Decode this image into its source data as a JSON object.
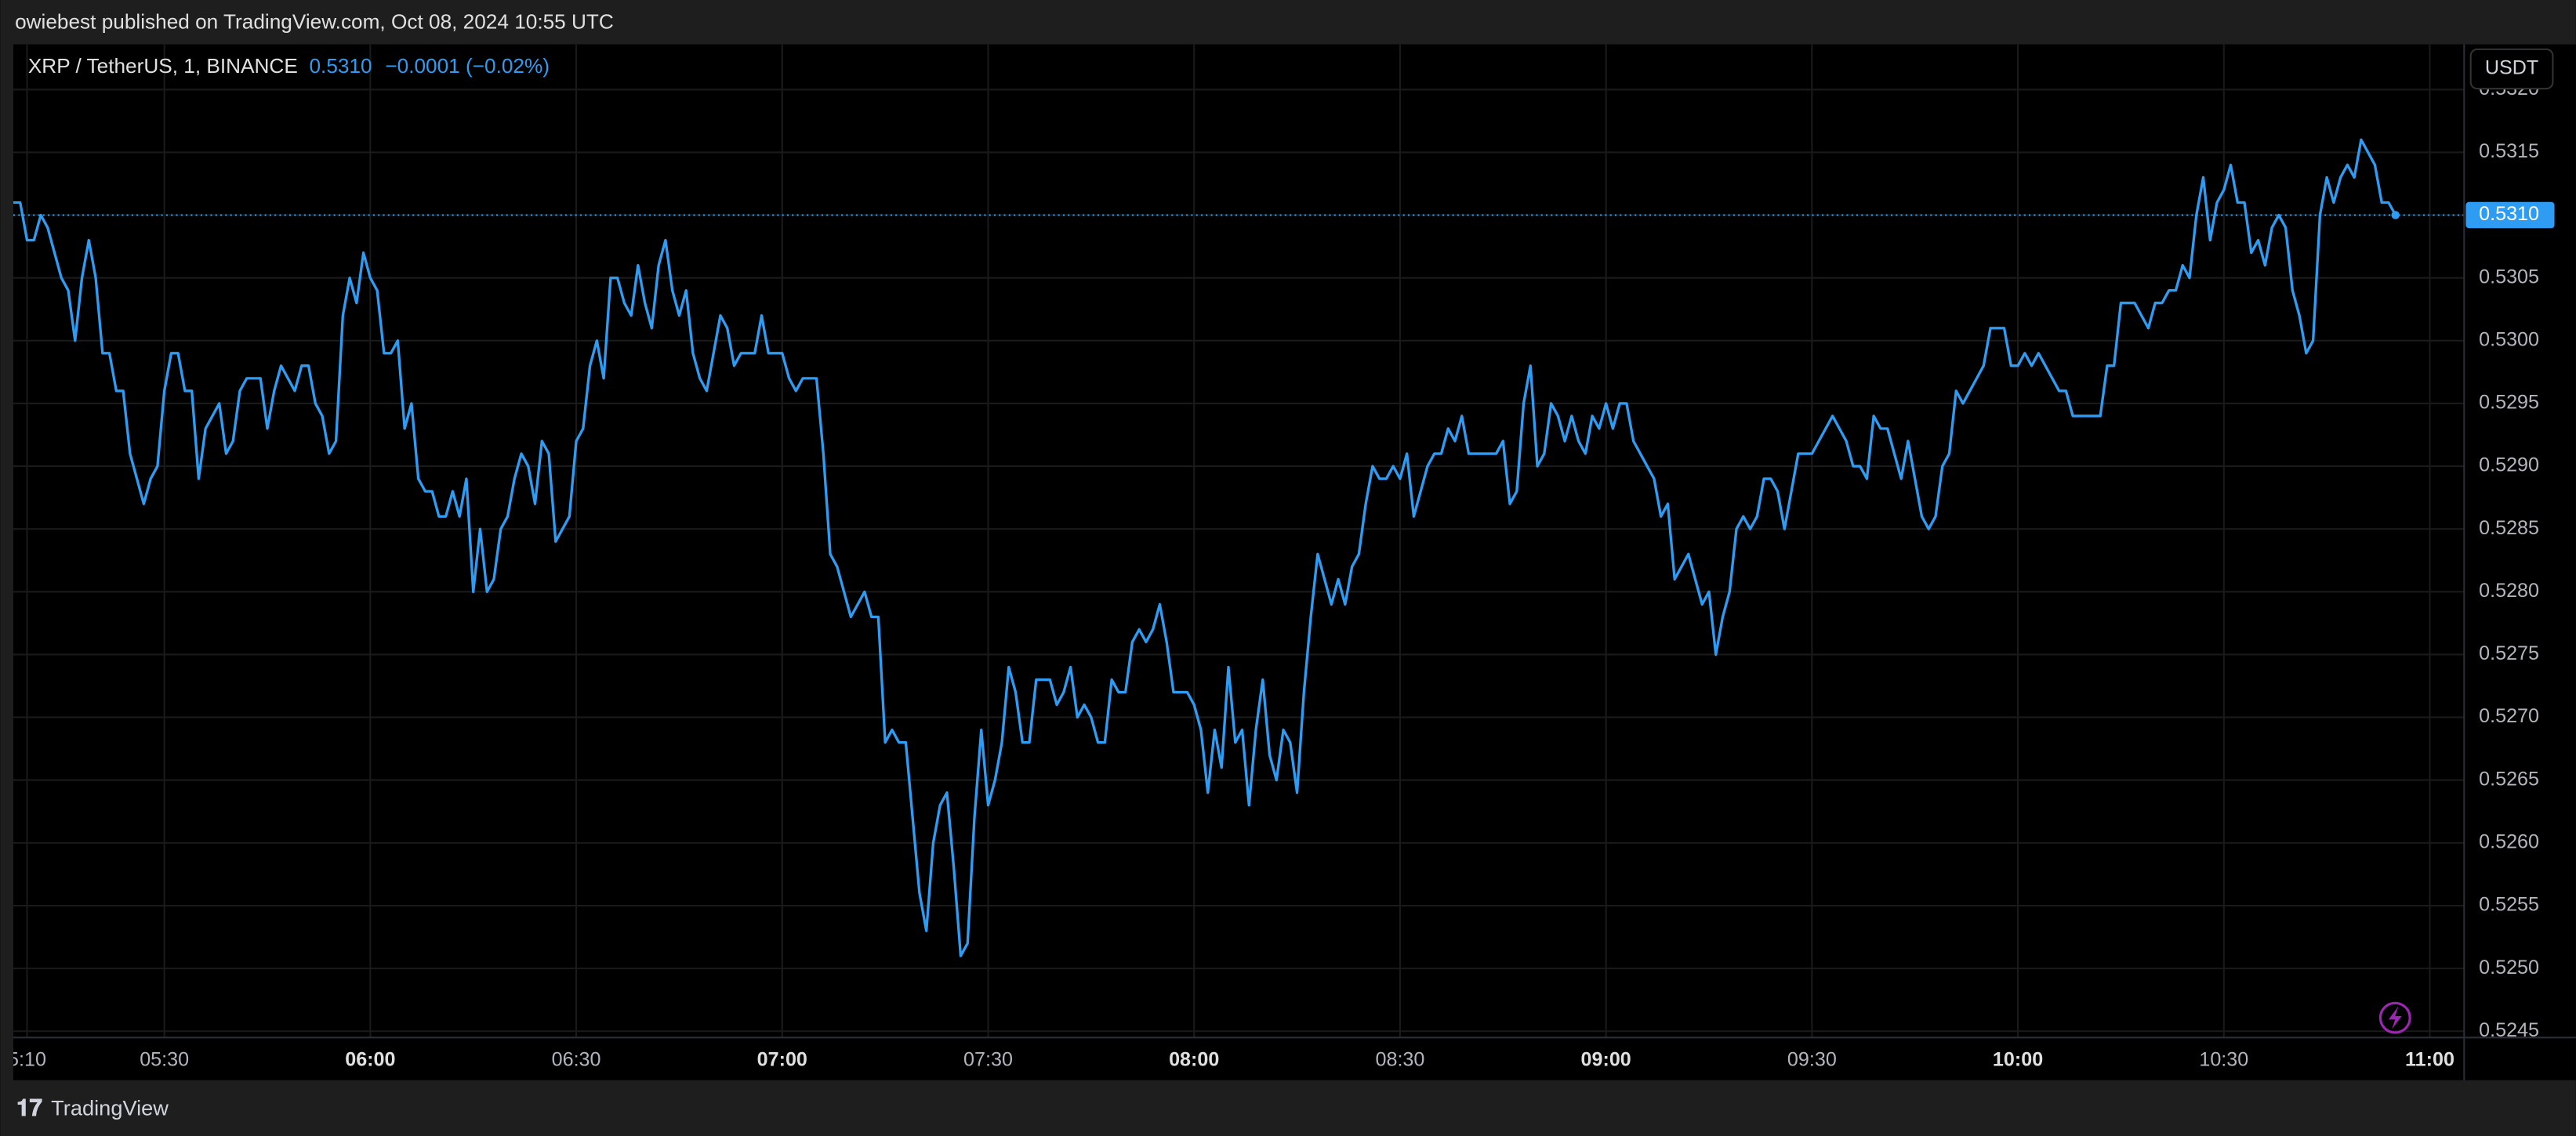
{
  "header": {
    "title": "owiebest published on TradingView.com, Oct 08, 2024 10:55 UTC"
  },
  "legend": {
    "last": "0.5310",
    "change": "−0.0001 (−0.02%)"
  },
  "currency_button": "USDT",
  "footer": {
    "brand": "TradingView"
  },
  "chart_data": {
    "type": "line",
    "series": [
      {
        "name": "XRP / TetherUS, 1, BINANCE",
        "color": "#2e9cf2",
        "values": [
          0.5311,
          0.5311,
          0.5308,
          0.5308,
          0.531,
          0.5309,
          0.5307,
          0.5305,
          0.5304,
          0.53,
          0.5305,
          0.5308,
          0.5305,
          0.5299,
          0.5299,
          0.5296,
          0.5296,
          0.5291,
          0.5289,
          0.5287,
          0.5289,
          0.529,
          0.5296,
          0.5299,
          0.5299,
          0.5296,
          0.5296,
          0.5289,
          0.5293,
          0.5294,
          0.5295,
          0.5291,
          0.5292,
          0.5296,
          0.5297,
          0.5297,
          0.5297,
          0.5293,
          0.5296,
          0.5298,
          0.5297,
          0.5296,
          0.5298,
          0.5298,
          0.5295,
          0.5294,
          0.5291,
          0.5292,
          0.5302,
          0.5305,
          0.5303,
          0.5307,
          0.5305,
          0.5304,
          0.5299,
          0.5299,
          0.53,
          0.5293,
          0.5295,
          0.5289,
          0.5288,
          0.5288,
          0.5286,
          0.5286,
          0.5288,
          0.5286,
          0.5289,
          0.528,
          0.5285,
          0.528,
          0.5281,
          0.5285,
          0.5286,
          0.5289,
          0.5291,
          0.529,
          0.5287,
          0.5292,
          0.5291,
          0.5284,
          0.5285,
          0.5286,
          0.5292,
          0.5293,
          0.5298,
          0.53,
          0.5297,
          0.5305,
          0.5305,
          0.5303,
          0.5302,
          0.5306,
          0.5303,
          0.5301,
          0.5306,
          0.5308,
          0.5304,
          0.5302,
          0.5304,
          0.5299,
          0.5297,
          0.5296,
          0.5299,
          0.5302,
          0.5301,
          0.5298,
          0.5299,
          0.5299,
          0.5299,
          0.5302,
          0.5299,
          0.5299,
          0.5299,
          0.5297,
          0.5296,
          0.5297,
          0.5297,
          0.5297,
          0.5291,
          0.5283,
          0.5282,
          0.528,
          0.5278,
          0.5279,
          0.528,
          0.5278,
          0.5278,
          0.5268,
          0.5269,
          0.5268,
          0.5268,
          0.5262,
          0.5256,
          0.5253,
          0.526,
          0.5263,
          0.5264,
          0.5258,
          0.5251,
          0.5252,
          0.5262,
          0.5269,
          0.5263,
          0.5265,
          0.5268,
          0.5274,
          0.5272,
          0.5268,
          0.5268,
          0.5273,
          0.5273,
          0.5273,
          0.5271,
          0.5272,
          0.5274,
          0.527,
          0.5271,
          0.527,
          0.5268,
          0.5268,
          0.5273,
          0.5272,
          0.5272,
          0.5276,
          0.5277,
          0.5276,
          0.5277,
          0.5279,
          0.5276,
          0.5272,
          0.5272,
          0.5272,
          0.5271,
          0.5269,
          0.5264,
          0.5269,
          0.5266,
          0.5274,
          0.5268,
          0.5269,
          0.5263,
          0.5269,
          0.5273,
          0.5267,
          0.5265,
          0.5269,
          0.5268,
          0.5264,
          0.5272,
          0.5278,
          0.5283,
          0.5281,
          0.5279,
          0.5281,
          0.5279,
          0.5282,
          0.5283,
          0.5287,
          0.529,
          0.5289,
          0.5289,
          0.529,
          0.5289,
          0.5291,
          0.5286,
          0.5288,
          0.529,
          0.5291,
          0.5291,
          0.5293,
          0.5292,
          0.5294,
          0.5291,
          0.5291,
          0.5291,
          0.5291,
          0.5291,
          0.5292,
          0.5287,
          0.5288,
          0.5295,
          0.5298,
          0.529,
          0.5291,
          0.5295,
          0.5294,
          0.5292,
          0.5294,
          0.5292,
          0.5291,
          0.5294,
          0.5293,
          0.5295,
          0.5293,
          0.5295,
          0.5295,
          0.5292,
          0.5291,
          0.529,
          0.5289,
          0.5286,
          0.5287,
          0.5281,
          0.5282,
          0.5283,
          0.5281,
          0.5279,
          0.528,
          0.5275,
          0.5278,
          0.528,
          0.5285,
          0.5286,
          0.5285,
          0.5286,
          0.5289,
          0.5289,
          0.5288,
          0.5285,
          0.5288,
          0.5291,
          0.5291,
          0.5291,
          0.5292,
          0.5293,
          0.5294,
          0.5293,
          0.5292,
          0.529,
          0.529,
          0.5289,
          0.5294,
          0.5293,
          0.5293,
          0.5291,
          0.5289,
          0.5292,
          0.5289,
          0.5286,
          0.5285,
          0.5286,
          0.529,
          0.5291,
          0.5296,
          0.5295,
          0.5296,
          0.5297,
          0.5298,
          0.5301,
          0.5301,
          0.5301,
          0.5298,
          0.5298,
          0.5299,
          0.5298,
          0.5299,
          0.5298,
          0.5297,
          0.5296,
          0.5296,
          0.5294,
          0.5294,
          0.5294,
          0.5294,
          0.5294,
          0.5298,
          0.5298,
          0.5303,
          0.5303,
          0.5303,
          0.5302,
          0.5301,
          0.5303,
          0.5303,
          0.5304,
          0.5304,
          0.5306,
          0.5305,
          0.531,
          0.5313,
          0.5308,
          0.5311,
          0.5312,
          0.5314,
          0.5311,
          0.5311,
          0.5307,
          0.5308,
          0.5306,
          0.5309,
          0.531,
          0.5309,
          0.5304,
          0.5302,
          0.5299,
          0.53,
          0.531,
          0.5313,
          0.5311,
          0.5313,
          0.5314,
          0.5313,
          0.5316,
          0.5315,
          0.5314,
          0.5311,
          0.5311,
          0.531
        ]
      }
    ],
    "x": [
      "05:08",
      "05:09",
      "05:10",
      "05:11",
      "05:12",
      "05:13",
      "05:14",
      "05:15",
      "05:16",
      "05:17",
      "05:18",
      "05:19",
      "05:20",
      "05:21",
      "05:22",
      "05:23",
      "05:24",
      "05:25",
      "05:26",
      "05:27",
      "05:28",
      "05:29",
      "05:30",
      "05:31",
      "05:32",
      "05:33",
      "05:34",
      "05:35",
      "05:36",
      "05:37",
      "05:38",
      "05:39",
      "05:40",
      "05:41",
      "05:42",
      "05:43",
      "05:44",
      "05:45",
      "05:46",
      "05:47",
      "05:48",
      "05:49",
      "05:50",
      "05:51",
      "05:52",
      "05:53",
      "05:54",
      "05:55",
      "05:56",
      "05:57",
      "05:58",
      "05:59",
      "06:00",
      "06:01",
      "06:02",
      "06:03",
      "06:04",
      "06:05",
      "06:06",
      "06:07",
      "06:08",
      "06:09",
      "06:10",
      "06:11",
      "06:12",
      "06:13",
      "06:14",
      "06:15",
      "06:16",
      "06:17",
      "06:18",
      "06:19",
      "06:20",
      "06:21",
      "06:22",
      "06:23",
      "06:24",
      "06:25",
      "06:26",
      "06:27",
      "06:28",
      "06:29",
      "06:30",
      "06:31",
      "06:32",
      "06:33",
      "06:34",
      "06:35",
      "06:36",
      "06:37",
      "06:38",
      "06:39",
      "06:40",
      "06:41",
      "06:42",
      "06:43",
      "06:44",
      "06:45",
      "06:46",
      "06:47",
      "06:48",
      "06:49",
      "06:50",
      "06:51",
      "06:52",
      "06:53",
      "06:54",
      "06:55",
      "06:56",
      "06:57",
      "06:58",
      "06:59",
      "07:00",
      "07:01",
      "07:02",
      "07:03",
      "07:04",
      "07:05",
      "07:06",
      "07:07",
      "07:08",
      "07:09",
      "07:10",
      "07:11",
      "07:12",
      "07:13",
      "07:14",
      "07:15",
      "07:16",
      "07:17",
      "07:18",
      "07:19",
      "07:20",
      "07:21",
      "07:22",
      "07:23",
      "07:24",
      "07:25",
      "07:26",
      "07:27",
      "07:28",
      "07:29",
      "07:30",
      "07:31",
      "07:32",
      "07:33",
      "07:34",
      "07:35",
      "07:36",
      "07:37",
      "07:38",
      "07:39",
      "07:40",
      "07:41",
      "07:42",
      "07:43",
      "07:44",
      "07:45",
      "07:46",
      "07:47",
      "07:48",
      "07:49",
      "07:50",
      "07:51",
      "07:52",
      "07:53",
      "07:54",
      "07:55",
      "07:56",
      "07:57",
      "07:58",
      "07:59",
      "08:00",
      "08:01",
      "08:02",
      "08:03",
      "08:04",
      "08:05",
      "08:06",
      "08:07",
      "08:08",
      "08:09",
      "08:10",
      "08:11",
      "08:12",
      "08:13",
      "08:14",
      "08:15",
      "08:16",
      "08:17",
      "08:18",
      "08:19",
      "08:20",
      "08:21",
      "08:22",
      "08:23",
      "08:24",
      "08:25",
      "08:26",
      "08:27",
      "08:28",
      "08:29",
      "08:30",
      "08:31",
      "08:32",
      "08:33",
      "08:34",
      "08:35",
      "08:36",
      "08:37",
      "08:38",
      "08:39",
      "08:40",
      "08:41",
      "08:42",
      "08:43",
      "08:44",
      "08:45",
      "08:46",
      "08:47",
      "08:48",
      "08:49",
      "08:50",
      "08:51",
      "08:52",
      "08:53",
      "08:54",
      "08:55",
      "08:56",
      "08:57",
      "08:58",
      "08:59",
      "09:00",
      "09:01",
      "09:02",
      "09:03",
      "09:04",
      "09:05",
      "09:06",
      "09:07",
      "09:08",
      "09:09",
      "09:10",
      "09:11",
      "09:12",
      "09:13",
      "09:14",
      "09:15",
      "09:16",
      "09:17",
      "09:18",
      "09:19",
      "09:20",
      "09:21",
      "09:22",
      "09:23",
      "09:24",
      "09:25",
      "09:26",
      "09:27",
      "09:28",
      "09:29",
      "09:30",
      "09:31",
      "09:32",
      "09:33",
      "09:34",
      "09:35",
      "09:36",
      "09:37",
      "09:38",
      "09:39",
      "09:40",
      "09:41",
      "09:42",
      "09:43",
      "09:44",
      "09:45",
      "09:46",
      "09:47",
      "09:48",
      "09:49",
      "09:50",
      "09:51",
      "09:52",
      "09:53",
      "09:54",
      "09:55",
      "09:56",
      "09:57",
      "09:58",
      "09:59",
      "10:00",
      "10:01",
      "10:02",
      "10:03",
      "10:04",
      "10:05",
      "10:06",
      "10:07",
      "10:08",
      "10:09",
      "10:10",
      "10:11",
      "10:12",
      "10:13",
      "10:14",
      "10:15",
      "10:16",
      "10:17",
      "10:18",
      "10:19",
      "10:20",
      "10:21",
      "10:22",
      "10:23",
      "10:24",
      "10:25",
      "10:26",
      "10:27",
      "10:28",
      "10:29",
      "10:30",
      "10:31",
      "10:32",
      "10:33",
      "10:34",
      "10:35",
      "10:36",
      "10:37",
      "10:38",
      "10:39",
      "10:40",
      "10:41",
      "10:42",
      "10:43",
      "10:44",
      "10:45",
      "10:46",
      "10:47",
      "10:48",
      "10:49",
      "10:50",
      "10:51",
      "10:52",
      "10:53",
      "10:54",
      "10:55"
    ],
    "xlim": [
      "05:08",
      "11:05"
    ],
    "xticks": [
      {
        "value": "05:10",
        "label": "5:10"
      },
      "05:30",
      "06:00",
      "06:30",
      "07:00",
      "07:30",
      "08:00",
      "08:30",
      "09:00",
      "09:30",
      "10:00",
      "10:30",
      "11:00"
    ],
    "ylim": [
      0.52445,
      0.53236
    ],
    "yticks": [
      {
        "value": 0.5245,
        "label": "0.5245"
      },
      {
        "value": 0.525,
        "label": "0.5250"
      },
      {
        "value": 0.5255,
        "label": "0.5255"
      },
      {
        "value": 0.526,
        "label": "0.5260"
      },
      {
        "value": 0.5265,
        "label": "0.5265"
      },
      {
        "value": 0.527,
        "label": "0.5270"
      },
      {
        "value": 0.5275,
        "label": "0.5275"
      },
      {
        "value": 0.528,
        "label": "0.5280"
      },
      {
        "value": 0.5285,
        "label": "0.5285"
      },
      {
        "value": 0.529,
        "label": "0.5290"
      },
      {
        "value": 0.5295,
        "label": "0.5295"
      },
      {
        "value": 0.53,
        "label": "0.5300"
      },
      {
        "value": 0.5305,
        "label": "0.5305"
      },
      {
        "value": 0.531,
        "label": "0.5310"
      },
      {
        "value": 0.5315,
        "label": "0.5315"
      },
      {
        "value": 0.532,
        "label": "0.5320"
      }
    ],
    "price_line": {
      "value": 0.531,
      "label": "0.5310"
    },
    "grid": true
  }
}
